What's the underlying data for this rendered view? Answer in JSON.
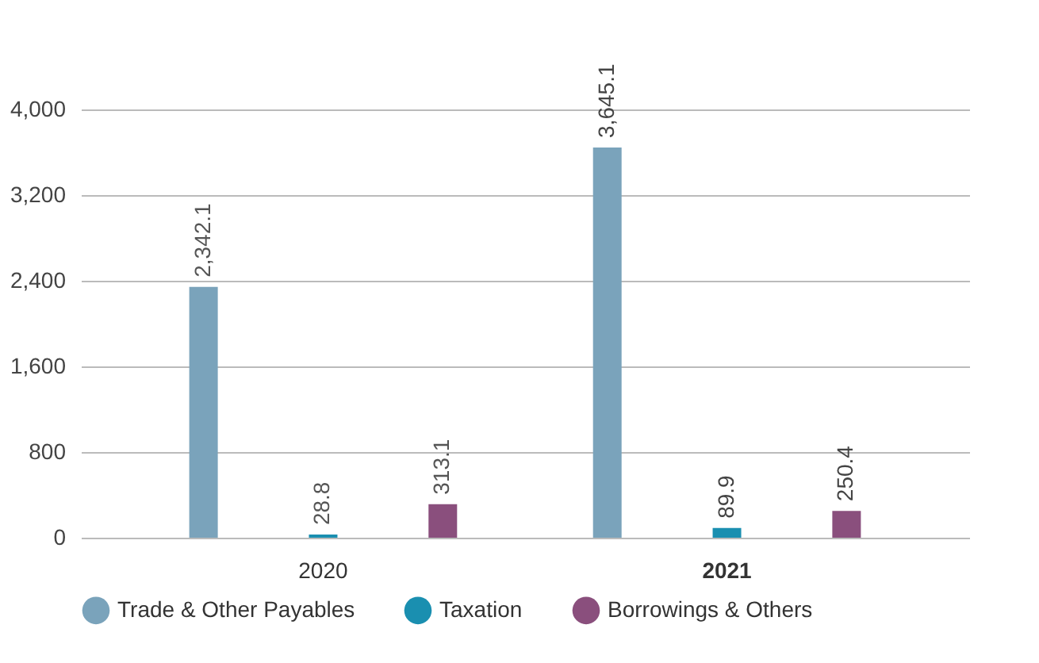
{
  "chart_data": {
    "type": "bar",
    "categories": [
      "2020",
      "2021"
    ],
    "series": [
      {
        "name": "Trade & Other Payables",
        "color": "#7aa3bb",
        "values": [
          2342.1,
          3645.1
        ],
        "value_labels": [
          "2,342.1",
          "3,645.1"
        ]
      },
      {
        "name": "Taxation",
        "color": "#1a8fb0",
        "values": [
          28.8,
          89.9
        ],
        "value_labels": [
          "28.8",
          "89.9"
        ]
      },
      {
        "name": "Borrowings & Others",
        "color": "#8a4f7d",
        "values": [
          313.1,
          250.4
        ],
        "value_labels": [
          "313.1",
          "250.4"
        ]
      }
    ],
    "ylim": [
      0,
      4000
    ],
    "yticks": [
      0,
      800,
      {
        "value": 1600,
        "label": "1,600"
      },
      {
        "value": 2400,
        "label": "2,400"
      },
      {
        "value": 3200,
        "label": "3,200"
      },
      {
        "value": 4000,
        "label": "4,000"
      }
    ],
    "grid": "y",
    "legend": "bottom"
  }
}
